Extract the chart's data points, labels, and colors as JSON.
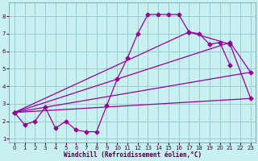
{
  "xlabel": "Windchill (Refroidissement éolien,°C)",
  "bg_color": "#c8f0f0",
  "line_color": "#990099",
  "grid_color": "#99cccc",
  "xlim": [
    -0.5,
    23.5
  ],
  "ylim": [
    0.8,
    8.8
  ],
  "xticks": [
    0,
    1,
    2,
    3,
    4,
    5,
    6,
    7,
    8,
    9,
    10,
    11,
    12,
    13,
    14,
    15,
    16,
    17,
    18,
    19,
    20,
    21,
    22,
    23
  ],
  "yticks": [
    1,
    2,
    3,
    4,
    5,
    6,
    7,
    8
  ],
  "curve1_x": [
    0,
    1,
    2,
    3,
    4,
    5,
    6,
    7,
    8,
    9,
    10,
    11,
    12,
    13,
    14,
    15,
    16,
    17,
    18,
    19,
    20,
    21
  ],
  "curve1_y": [
    2.5,
    1.8,
    2.0,
    2.8,
    1.6,
    2.0,
    1.5,
    1.4,
    1.4,
    2.9,
    4.4,
    5.6,
    7.0,
    8.1,
    8.1,
    8.1,
    8.1,
    7.1,
    7.0,
    6.4,
    6.5,
    5.2
  ],
  "line2_x": [
    0,
    21,
    23
  ],
  "line2_y": [
    2.5,
    6.5,
    4.8
  ],
  "line3_x": [
    0,
    17,
    21,
    23
  ],
  "line3_y": [
    2.5,
    7.1,
    6.4,
    3.3
  ],
  "line4_x": [
    0,
    23
  ],
  "line4_y": [
    2.5,
    4.8
  ],
  "line5_x": [
    0,
    23
  ],
  "line5_y": [
    2.5,
    3.3
  ]
}
